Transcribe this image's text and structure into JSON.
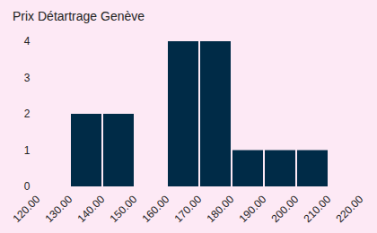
{
  "chart_data": {
    "type": "histogram",
    "title": "Prix Détartrage Genève",
    "bins": [
      120,
      130,
      140,
      150,
      160,
      170,
      180,
      190,
      200,
      210,
      220
    ],
    "values": [
      0,
      2,
      2,
      0,
      4,
      4,
      1,
      1,
      1,
      0
    ],
    "color": "#002b47",
    "xlim": [
      120,
      220
    ],
    "xticks": [
      {
        "value": 120,
        "label": "120.00"
      },
      {
        "value": 130,
        "label": "130.00"
      },
      {
        "value": 140,
        "label": "140.00"
      },
      {
        "value": 150,
        "label": "150.00"
      },
      {
        "value": 160,
        "label": "160.00"
      },
      {
        "value": 170,
        "label": "170.00"
      },
      {
        "value": 180,
        "label": "180.00"
      },
      {
        "value": 190,
        "label": "190.00"
      },
      {
        "value": 200,
        "label": "200.00"
      },
      {
        "value": 210,
        "label": "210.00"
      },
      {
        "value": 220,
        "label": "220.00"
      }
    ],
    "ylim": [
      0,
      4
    ],
    "yticks": [
      0,
      1,
      2,
      3,
      4
    ],
    "grid": false
  }
}
